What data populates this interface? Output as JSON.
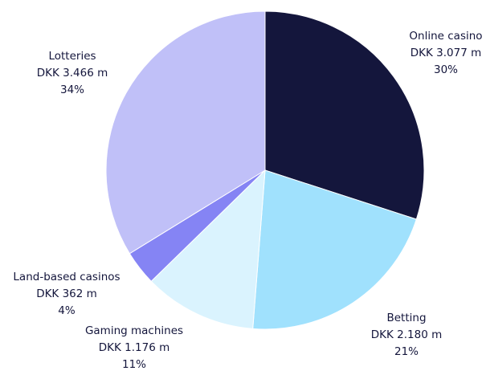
{
  "chart_data": {
    "type": "pie",
    "categories": [
      "Online casino",
      "Betting",
      "Gaming machines",
      "Land-based casinos",
      "Lotteries"
    ],
    "values": [
      3077,
      2180,
      1176,
      362,
      3466
    ],
    "value_labels": [
      "DKK 3.077 m",
      "DKK 2.180 m",
      "DKK 1.176 m",
      "DKK 362 m",
      "DKK 3.466 m"
    ],
    "percents": [
      30,
      21,
      11,
      4,
      34
    ],
    "percent_labels": [
      "30%",
      "21%",
      "11%",
      "4%",
      "34%"
    ],
    "colors": [
      "#14163c",
      "#a0e1fd",
      "#daf3fe",
      "#8584f4",
      "#c0c0f8"
    ]
  }
}
